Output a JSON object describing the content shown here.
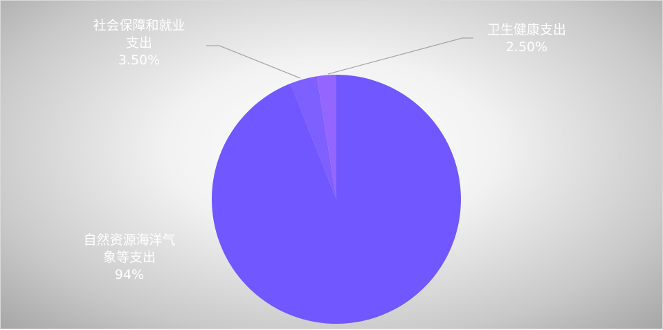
{
  "chart_data": {
    "type": "pie",
    "title": "",
    "slices": [
      {
        "label_lines": [
          "自然资源海洋气",
          "象等支出"
        ],
        "value": 94,
        "value_label": "94%",
        "color": "#7157FF"
      },
      {
        "label_lines": [
          "社会保障和就业",
          "支出"
        ],
        "value": 3.5,
        "value_label": "3.50%",
        "color": "#7E5FFF"
      },
      {
        "label_lines": [
          "卫生健康支出"
        ],
        "value": 2.5,
        "value_label": "2.50%",
        "color": "#9466FF"
      }
    ],
    "start_angle_deg": 0,
    "direction": "clockwise",
    "legend": "none",
    "leader_line_color": "#a6a6a6"
  }
}
